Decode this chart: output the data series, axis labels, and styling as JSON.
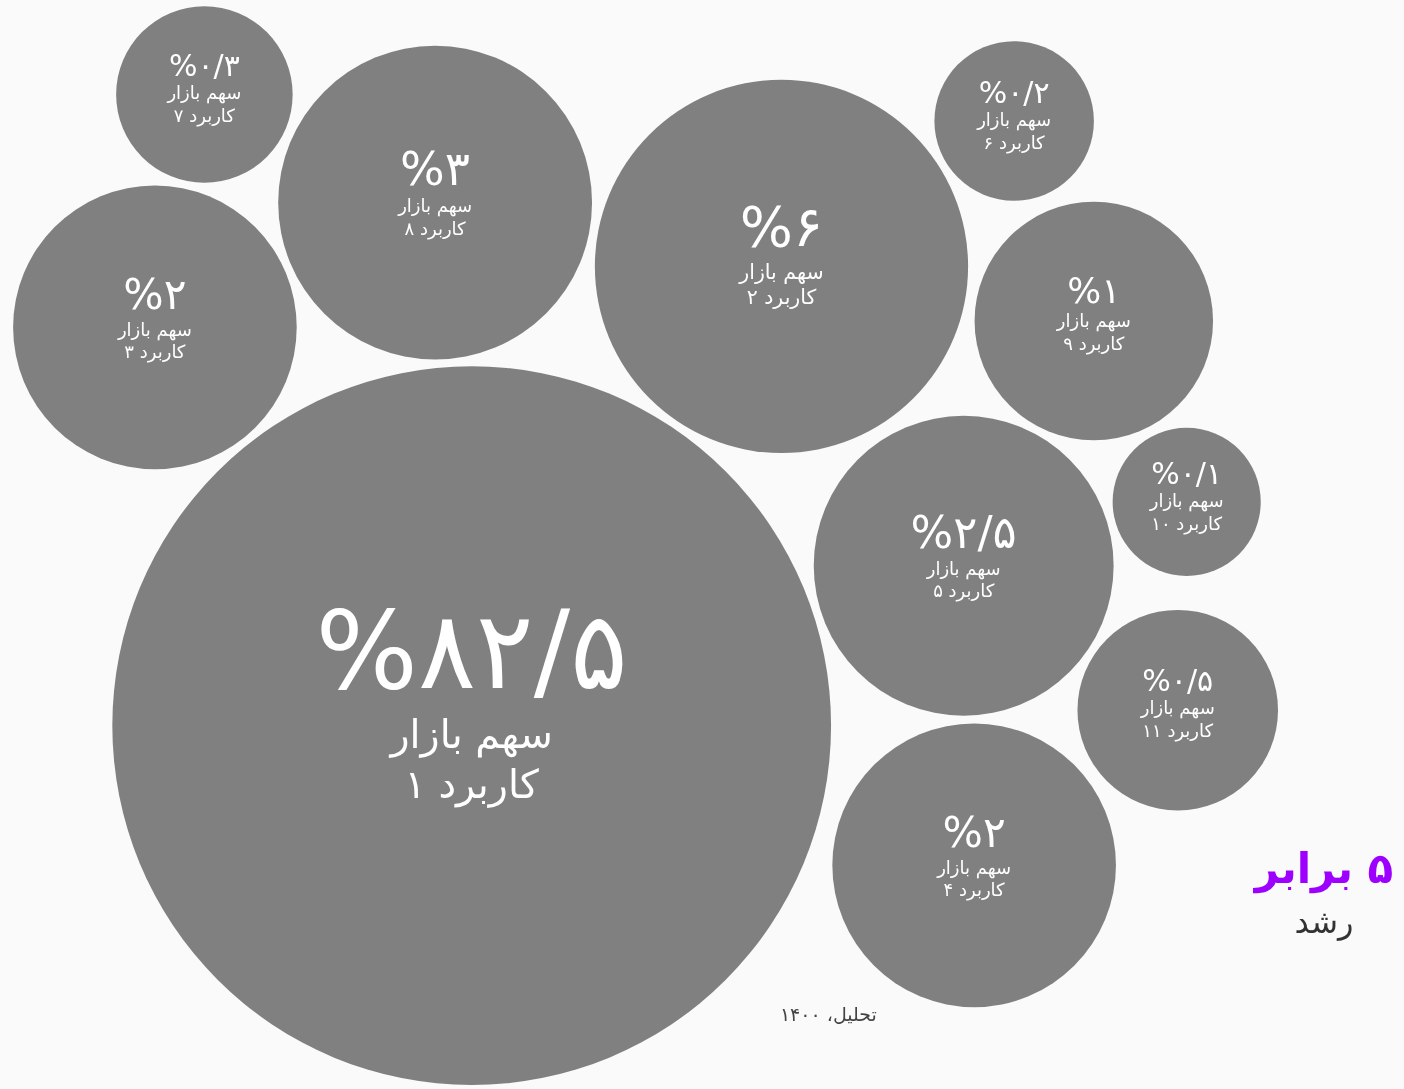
{
  "chart_data": {
    "type": "other",
    "ylabel": "سهم بازار",
    "color": "#808080",
    "categories": [
      "کاربرد ۱",
      "کاربرد ۲",
      "کاربرد ۳",
      "کاربرد ۴",
      "کاربرد ۵",
      "کاربرد ۶",
      "کاربرد ۷",
      "کاربرد ۸",
      "کاربرد ۹",
      "کاربرد ۱۰",
      "کاربرد ۱۱"
    ],
    "values": [
      82.5,
      6,
      2,
      2,
      2.5,
      0.2,
      0.3,
      3,
      1,
      0.1,
      0.5
    ],
    "value_labels": [
      "%۸۲/۵",
      "%۶",
      "%۲",
      "%۲",
      "%۲/۵",
      "%۰/۲",
      "%۰/۳",
      "%۳",
      "%۱",
      "%۰/۱",
      "%۰/۵"
    ],
    "annotations": [
      "۵ برابر",
      "رشد",
      "تحلیل، ۱۴۰۰"
    ]
  }
}
